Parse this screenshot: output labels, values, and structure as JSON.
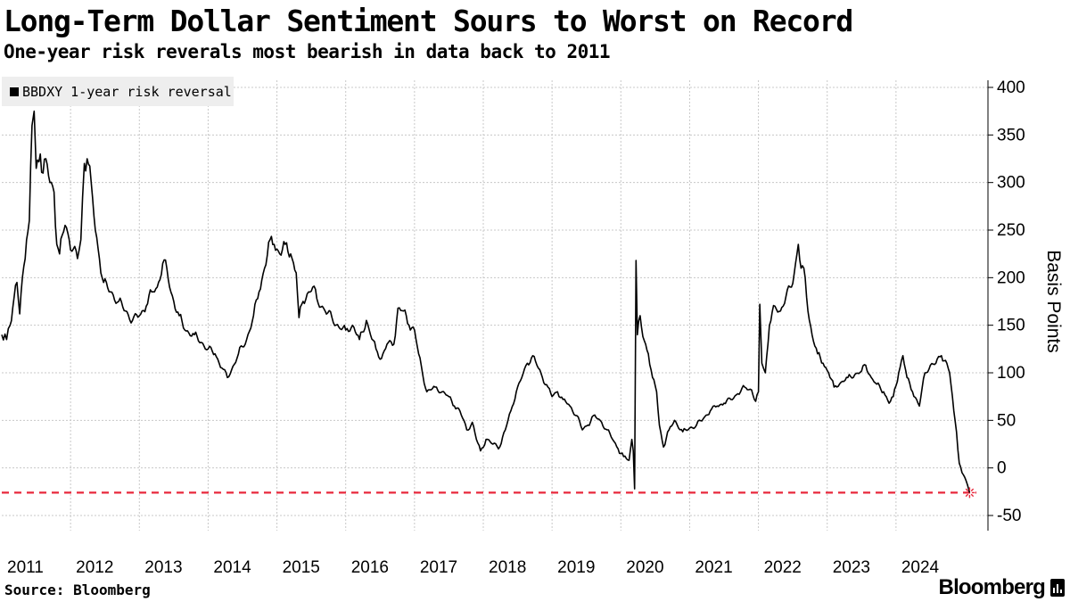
{
  "header": {
    "title": "Long-Term Dollar Sentiment Sours to Worst on Record",
    "subtitle": "One-year risk reverals most bearish in data back to 2011"
  },
  "footer": {
    "source": "Source: Bloomberg",
    "brand": "Bloomberg"
  },
  "icons": {
    "brand_mark": "bloomberg-terminal-icon"
  },
  "colors": {
    "line": "#000000",
    "reference": "#e8283c",
    "grid": "#c8c8c8"
  },
  "chart_data": {
    "type": "line",
    "ylabel": "Basis Points",
    "ylim": [
      -65,
      410
    ],
    "yticks": [
      400,
      350,
      300,
      250,
      200,
      150,
      100,
      50,
      0,
      -50
    ],
    "xlim": [
      2011.0,
      2025.5
    ],
    "xticks": [
      2011,
      2012,
      2013,
      2014,
      2015,
      2016,
      2017,
      2018,
      2019,
      2020,
      2021,
      2022,
      2023,
      2024
    ],
    "grid": true,
    "legend_position": "top-left",
    "reference_line": {
      "y": -26,
      "style": "dashed"
    },
    "series": [
      {
        "name": "BBDXY 1-year risk reversal",
        "points": [
          [
            2011.0,
            140
          ],
          [
            2011.07,
            135
          ],
          [
            2011.12,
            150
          ],
          [
            2011.18,
            180
          ],
          [
            2011.22,
            195
          ],
          [
            2011.26,
            162
          ],
          [
            2011.3,
            200
          ],
          [
            2011.36,
            240
          ],
          [
            2011.4,
            260
          ],
          [
            2011.44,
            360
          ],
          [
            2011.47,
            375
          ],
          [
            2011.5,
            315
          ],
          [
            2011.56,
            330
          ],
          [
            2011.6,
            310
          ],
          [
            2011.64,
            325
          ],
          [
            2011.7,
            300
          ],
          [
            2011.76,
            290
          ],
          [
            2011.8,
            235
          ],
          [
            2011.84,
            225
          ],
          [
            2011.88,
            245
          ],
          [
            2011.92,
            255
          ],
          [
            2011.98,
            240
          ],
          [
            2012.04,
            230
          ],
          [
            2012.1,
            220
          ],
          [
            2012.15,
            240
          ],
          [
            2012.2,
            320
          ],
          [
            2012.24,
            325
          ],
          [
            2012.3,
            300
          ],
          [
            2012.36,
            250
          ],
          [
            2012.42,
            220
          ],
          [
            2012.48,
            195
          ],
          [
            2012.58,
            185
          ],
          [
            2012.7,
            175
          ],
          [
            2012.8,
            165
          ],
          [
            2012.9,
            155
          ],
          [
            2013.0,
            160
          ],
          [
            2013.1,
            170
          ],
          [
            2013.18,
            185
          ],
          [
            2013.26,
            190
          ],
          [
            2013.34,
            215
          ],
          [
            2013.4,
            210
          ],
          [
            2013.44,
            190
          ],
          [
            2013.5,
            175
          ],
          [
            2013.58,
            160
          ],
          [
            2013.66,
            145
          ],
          [
            2013.8,
            140
          ],
          [
            2013.9,
            132
          ],
          [
            2014.0,
            125
          ],
          [
            2014.1,
            120
          ],
          [
            2014.2,
            105
          ],
          [
            2014.28,
            95
          ],
          [
            2014.34,
            103
          ],
          [
            2014.44,
            120
          ],
          [
            2014.56,
            135
          ],
          [
            2014.66,
            160
          ],
          [
            2014.74,
            185
          ],
          [
            2014.82,
            210
          ],
          [
            2014.9,
            240
          ],
          [
            2014.96,
            235
          ],
          [
            2015.04,
            225
          ],
          [
            2015.12,
            235
          ],
          [
            2015.2,
            225
          ],
          [
            2015.28,
            205
          ],
          [
            2015.32,
            158
          ],
          [
            2015.38,
            175
          ],
          [
            2015.46,
            185
          ],
          [
            2015.52,
            190
          ],
          [
            2015.58,
            178
          ],
          [
            2015.7,
            165
          ],
          [
            2015.8,
            158
          ],
          [
            2015.9,
            148
          ],
          [
            2016.0,
            145
          ],
          [
            2016.1,
            150
          ],
          [
            2016.2,
            135
          ],
          [
            2016.3,
            155
          ],
          [
            2016.36,
            140
          ],
          [
            2016.44,
            125
          ],
          [
            2016.52,
            115
          ],
          [
            2016.6,
            130
          ],
          [
            2016.7,
            130
          ],
          [
            2016.76,
            168
          ],
          [
            2016.84,
            165
          ],
          [
            2016.92,
            150
          ],
          [
            2017.0,
            145
          ],
          [
            2017.06,
            120
          ],
          [
            2017.12,
            98
          ],
          [
            2017.18,
            80
          ],
          [
            2017.3,
            85
          ],
          [
            2017.4,
            80
          ],
          [
            2017.5,
            75
          ],
          [
            2017.58,
            65
          ],
          [
            2017.66,
            60
          ],
          [
            2017.76,
            40
          ],
          [
            2017.84,
            48
          ],
          [
            2017.9,
            30
          ],
          [
            2017.96,
            18
          ],
          [
            2018.04,
            30
          ],
          [
            2018.14,
            25
          ],
          [
            2018.24,
            22
          ],
          [
            2018.32,
            40
          ],
          [
            2018.4,
            60
          ],
          [
            2018.48,
            80
          ],
          [
            2018.56,
            95
          ],
          [
            2018.64,
            110
          ],
          [
            2018.72,
            118
          ],
          [
            2018.8,
            105
          ],
          [
            2018.86,
            95
          ],
          [
            2018.94,
            85
          ],
          [
            2019.0,
            75
          ],
          [
            2019.08,
            80
          ],
          [
            2019.16,
            72
          ],
          [
            2019.26,
            65
          ],
          [
            2019.36,
            55
          ],
          [
            2019.44,
            40
          ],
          [
            2019.52,
            45
          ],
          [
            2019.6,
            55
          ],
          [
            2019.7,
            50
          ],
          [
            2019.8,
            40
          ],
          [
            2019.88,
            30
          ],
          [
            2019.96,
            20
          ],
          [
            2020.04,
            12
          ],
          [
            2020.12,
            8
          ],
          [
            2020.16,
            30
          ],
          [
            2020.18,
            18
          ],
          [
            2020.2,
            -22
          ],
          [
            2020.22,
            218
          ],
          [
            2020.24,
            140
          ],
          [
            2020.28,
            160
          ],
          [
            2020.32,
            138
          ],
          [
            2020.4,
            120
          ],
          [
            2020.46,
            95
          ],
          [
            2020.52,
            80
          ],
          [
            2020.56,
            45
          ],
          [
            2020.62,
            22
          ],
          [
            2020.7,
            40
          ],
          [
            2020.78,
            50
          ],
          [
            2020.9,
            38
          ],
          [
            2021.0,
            42
          ],
          [
            2021.1,
            45
          ],
          [
            2021.2,
            52
          ],
          [
            2021.3,
            60
          ],
          [
            2021.4,
            65
          ],
          [
            2021.5,
            68
          ],
          [
            2021.6,
            72
          ],
          [
            2021.7,
            78
          ],
          [
            2021.8,
            85
          ],
          [
            2021.9,
            82
          ],
          [
            2021.96,
            70
          ],
          [
            2022.0,
            80
          ],
          [
            2022.02,
            172
          ],
          [
            2022.05,
            110
          ],
          [
            2022.1,
            100
          ],
          [
            2022.16,
            150
          ],
          [
            2022.24,
            170
          ],
          [
            2022.32,
            165
          ],
          [
            2022.4,
            180
          ],
          [
            2022.48,
            190
          ],
          [
            2022.54,
            215
          ],
          [
            2022.58,
            235
          ],
          [
            2022.62,
            210
          ],
          [
            2022.68,
            200
          ],
          [
            2022.72,
            165
          ],
          [
            2022.78,
            140
          ],
          [
            2022.86,
            120
          ],
          [
            2022.94,
            110
          ],
          [
            2023.02,
            100
          ],
          [
            2023.1,
            85
          ],
          [
            2023.2,
            90
          ],
          [
            2023.3,
            95
          ],
          [
            2023.4,
            98
          ],
          [
            2023.5,
            102
          ],
          [
            2023.56,
            108
          ],
          [
            2023.64,
            95
          ],
          [
            2023.72,
            88
          ],
          [
            2023.82,
            80
          ],
          [
            2023.9,
            68
          ],
          [
            2023.96,
            75
          ],
          [
            2024.04,
            100
          ],
          [
            2024.1,
            118
          ],
          [
            2024.16,
            95
          ],
          [
            2024.24,
            80
          ],
          [
            2024.34,
            65
          ],
          [
            2024.42,
            100
          ],
          [
            2024.5,
            108
          ],
          [
            2024.58,
            110
          ],
          [
            2024.66,
            118
          ],
          [
            2024.72,
            113
          ],
          [
            2024.78,
            100
          ],
          [
            2024.84,
            60
          ],
          [
            2024.88,
            38
          ],
          [
            2024.92,
            5
          ],
          [
            2024.96,
            -5
          ],
          [
            2025.0,
            -10
          ],
          [
            2025.04,
            -18
          ],
          [
            2025.07,
            -26
          ]
        ]
      }
    ]
  }
}
